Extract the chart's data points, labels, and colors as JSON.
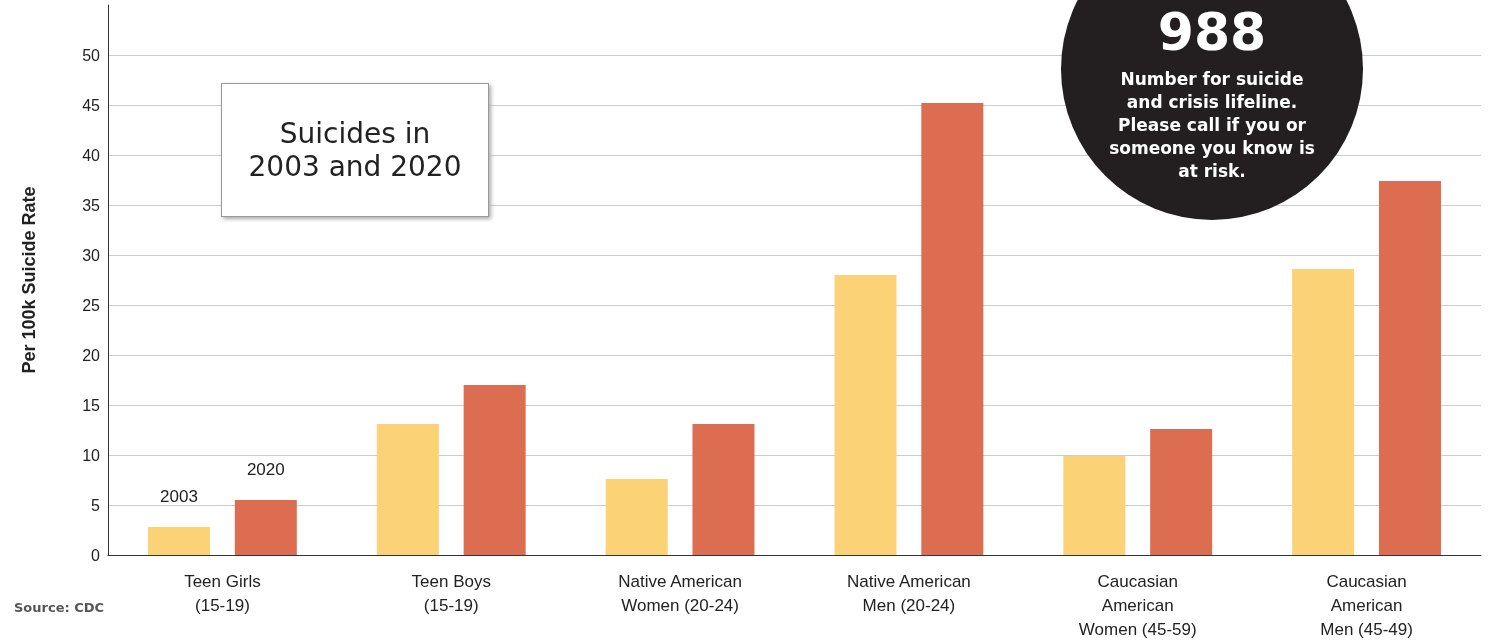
{
  "chart_data": {
    "type": "bar",
    "title": "Suicides in 2003 and 2020",
    "ylabel": "Per 100k Suicide Rate",
    "categories": [
      "Teen Girls\n(15-19)",
      "Teen Boys\n(15-19)",
      "Native American\nWomen (20-24)",
      "Native American\nMen (20-24)",
      "Caucasian\nAmerican\nWomen (45-59)",
      "Caucasian\nAmerican\nMen (45-49)"
    ],
    "series": [
      {
        "name": "2003",
        "color": "#fbd276",
        "values": [
          2.8,
          13.1,
          7.6,
          28,
          9.9,
          28.6
        ]
      },
      {
        "name": "2020",
        "color": "#dc6d50",
        "values": [
          5.5,
          17,
          13.1,
          45.2,
          12.6,
          37.4
        ]
      }
    ],
    "ylim": [
      0,
      55
    ],
    "yticks": [
      0,
      5,
      10,
      15,
      20,
      25,
      30,
      35,
      40,
      45,
      50
    ],
    "grid": "y",
    "legend": false,
    "annotations": [
      "988",
      "Number for suicide and crisis lifeline. Please call if you or someone you know is at risk.",
      "Source: CDC"
    ]
  }
}
